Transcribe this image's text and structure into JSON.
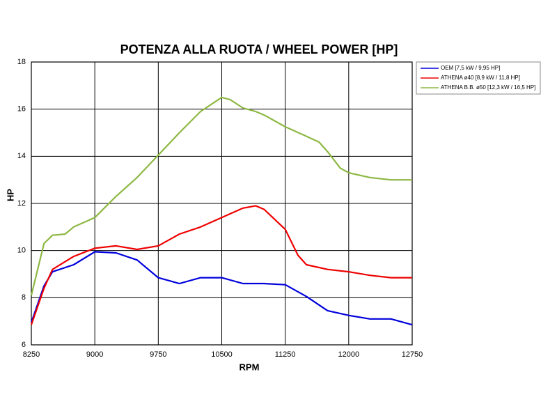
{
  "chart_data": {
    "type": "line",
    "title": "POTENZA ALLA RUOTA / WHEEL POWER [HP]",
    "x_label": "RPM",
    "y_label": "HP",
    "xlim": [
      8250,
      12750
    ],
    "xticks": [
      8250,
      9000,
      9750,
      10500,
      11250,
      12000,
      12750
    ],
    "ylim": [
      6,
      18
    ],
    "yticks": [
      6,
      8,
      10,
      12,
      14,
      16,
      18
    ],
    "grid": true,
    "legend": "right",
    "series": [
      {
        "name": "OEM [7,5 kW / 9,95 HP]",
        "color": "#0000dd",
        "x": [
          8250,
          8400,
          8500,
          8750,
          9000,
          9250,
          9500,
          9750,
          10000,
          10250,
          10500,
          10750,
          11000,
          11250,
          11500,
          11750,
          12000,
          12250,
          12500,
          12750
        ],
        "values": [
          6.95,
          8.5,
          9.1,
          9.4,
          9.95,
          9.9,
          9.6,
          8.85,
          8.6,
          8.85,
          8.85,
          8.6,
          8.6,
          8.55,
          8.05,
          7.45,
          7.25,
          7.1,
          7.1,
          6.85
        ]
      },
      {
        "name": "ATHENA ø40 [8,9 kW / 11,8 HP]",
        "color": "#ee0000",
        "x": [
          8250,
          8400,
          8500,
          8750,
          9000,
          9250,
          9500,
          9750,
          10000,
          10250,
          10500,
          10750,
          10900,
          11000,
          11250,
          11400,
          11500,
          11750,
          12000,
          12250,
          12500,
          12750
        ],
        "values": [
          6.85,
          8.4,
          9.2,
          9.75,
          10.1,
          10.2,
          10.05,
          10.2,
          10.7,
          11.0,
          11.4,
          11.8,
          11.9,
          11.75,
          10.9,
          9.8,
          9.4,
          9.2,
          9.1,
          8.95,
          8.85,
          8.85
        ]
      },
      {
        "name": "ATHENA B.B. ø50 [12,3 kW / 16,5 HP]",
        "color": "#8db843",
        "x": [
          8250,
          8400,
          8500,
          8650,
          8750,
          9000,
          9250,
          9500,
          9750,
          10000,
          10250,
          10500,
          10600,
          10750,
          10900,
          11000,
          11250,
          11500,
          11650,
          11750,
          11900,
          12000,
          12250,
          12500,
          12750
        ],
        "values": [
          8.1,
          10.3,
          10.65,
          10.7,
          11.0,
          11.4,
          12.3,
          13.1,
          14.05,
          15.0,
          15.9,
          16.5,
          16.4,
          16.05,
          15.9,
          15.75,
          15.25,
          14.85,
          14.6,
          14.2,
          13.5,
          13.3,
          13.1,
          13.0,
          13.0
        ]
      }
    ]
  }
}
